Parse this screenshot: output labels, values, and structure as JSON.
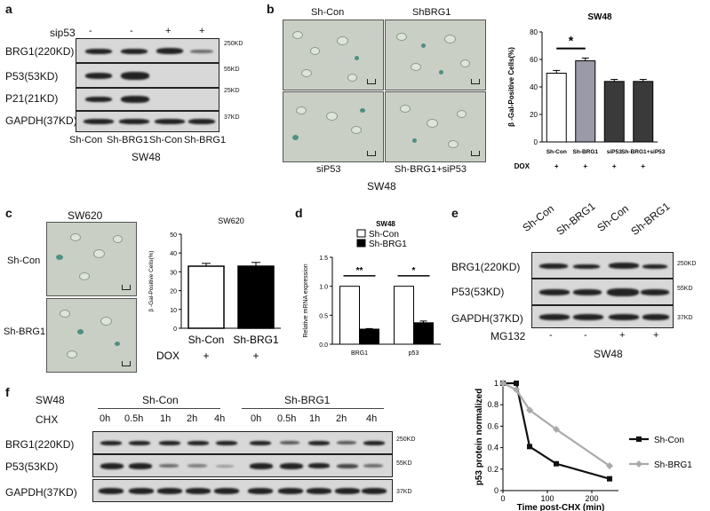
{
  "panels": {
    "a": {
      "label": "a",
      "row_names": [
        "BRG1(220KD)",
        "P53(53KD)",
        "P21(21KD)",
        "GAPDH(37KD)"
      ],
      "treatment_name": "sip53",
      "treatment_marks": [
        "-",
        "-",
        "+",
        "+"
      ],
      "kd_marks": [
        "250KD",
        "55KD",
        "25KD",
        "37KD"
      ],
      "lane_labels": [
        "Sh-Con",
        "Sh-BRG1",
        "Sh-Con",
        "Sh-BRG1"
      ],
      "cell_line": "SW48"
    },
    "b": {
      "label": "b",
      "image_labels": [
        "Sh-Con",
        "ShBRG1",
        "siP53",
        "Sh-BRG1+siP53"
      ],
      "cell_line": "SW48"
    },
    "c": {
      "label": "c",
      "title": "SW620",
      "row_labels": [
        "Sh-Con",
        "Sh-BRG1"
      ]
    },
    "d": {
      "label": "d"
    },
    "e": {
      "label": "e",
      "lane_labels": [
        "Sh-Con",
        "Sh-BRG1",
        "Sh-Con",
        "Sh-BRG1"
      ],
      "row_names": [
        "BRG1(220KD)",
        "P53(53KD)",
        "GAPDH(37KD)"
      ],
      "kd_marks": [
        "250KD",
        "55KD",
        "37KD"
      ],
      "treatment_name": "MG132",
      "treatment_marks": [
        "-",
        "-",
        "+",
        "+"
      ],
      "cell_line": "SW48"
    },
    "f": {
      "label": "f",
      "cell_line": "SW48",
      "group_labels": [
        "Sh-Con",
        "Sh-BRG1"
      ],
      "treatment_name": "CHX",
      "time_labels": [
        "0h",
        "0.5h",
        "1h",
        "2h",
        "4h"
      ],
      "row_names": [
        "BRG1(220KD)",
        "P53(53KD)",
        "GAPDH(37KD)"
      ],
      "kd_marks": [
        "250KD",
        "55KD",
        "37KD"
      ]
    }
  },
  "chart_data": [
    {
      "id": "b",
      "type": "bar",
      "title": "SW48",
      "ylabel": "β -Gal-Positive Cells(%)",
      "categories": [
        "Sh-Con",
        "Sh-BRG1",
        "siP53",
        "Sh-BRG1+siP53"
      ],
      "values": [
        50,
        59,
        44,
        44
      ],
      "errors": [
        2,
        2,
        1.5,
        1.5
      ],
      "colors": [
        "#ffffff",
        "#9a9aa8",
        "#3a3a3a",
        "#3a3a3a"
      ],
      "ylim": [
        0,
        80
      ],
      "yticks": [
        "0",
        "20",
        "40",
        "60",
        "80"
      ],
      "significance": "*",
      "treatment_name": "DOX",
      "treatment_marks": [
        "+",
        "+",
        "+",
        "+"
      ]
    },
    {
      "id": "c",
      "type": "bar",
      "title": "SW620",
      "ylabel": "β -Gal-Positive Cells(%)",
      "categories": [
        "Sh-Con",
        "Sh-BRG1"
      ],
      "values": [
        33,
        33
      ],
      "errors": [
        1.5,
        2
      ],
      "colors": [
        "#ffffff",
        "#000000"
      ],
      "ylim": [
        0,
        50
      ],
      "yticks": [
        "0",
        "10",
        "20",
        "30",
        "40",
        "50"
      ],
      "treatment_name": "DOX",
      "treatment_marks": [
        "+",
        "+"
      ]
    },
    {
      "id": "d",
      "type": "bar",
      "title": "SW48",
      "ylabel": "Relative mRNA expression",
      "categories": [
        "BRG1",
        "p53"
      ],
      "series": [
        {
          "name": "Sh-Con",
          "values": [
            1.0,
            1.0
          ],
          "errors": [
            0,
            0
          ],
          "color": "#ffffff"
        },
        {
          "name": "Sh-BRG1",
          "values": [
            0.26,
            0.37
          ],
          "errors": [
            0.01,
            0.03
          ],
          "color": "#000000"
        }
      ],
      "ylim": [
        0,
        1.5
      ],
      "yticks": [
        "0.0",
        "0.5",
        "1.0",
        "1.5"
      ],
      "significance": [
        "**",
        "*"
      ],
      "legend_position": "top"
    },
    {
      "id": "f",
      "type": "line",
      "title": "",
      "xlabel": "Time post-CHX (min)",
      "ylabel": "p53 protein normalized",
      "x": [
        0,
        30,
        60,
        120,
        240
      ],
      "series": [
        {
          "name": "Sh-Con",
          "values": [
            1.0,
            1.0,
            0.41,
            0.25,
            0.11
          ],
          "color": "#111111",
          "marker": "square"
        },
        {
          "name": "Sh-BRG1",
          "values": [
            1.0,
            0.94,
            0.75,
            0.57,
            0.23
          ],
          "color": "#aaaaaa",
          "marker": "diamond"
        }
      ],
      "xlim": [
        0,
        260
      ],
      "ylim": [
        0,
        1
      ],
      "xticks": [
        "0",
        "100",
        "200"
      ],
      "yticks": [
        "0",
        "0.2",
        "0.4",
        "0.6",
        "0.8",
        "1"
      ],
      "legend_position": "right"
    }
  ]
}
